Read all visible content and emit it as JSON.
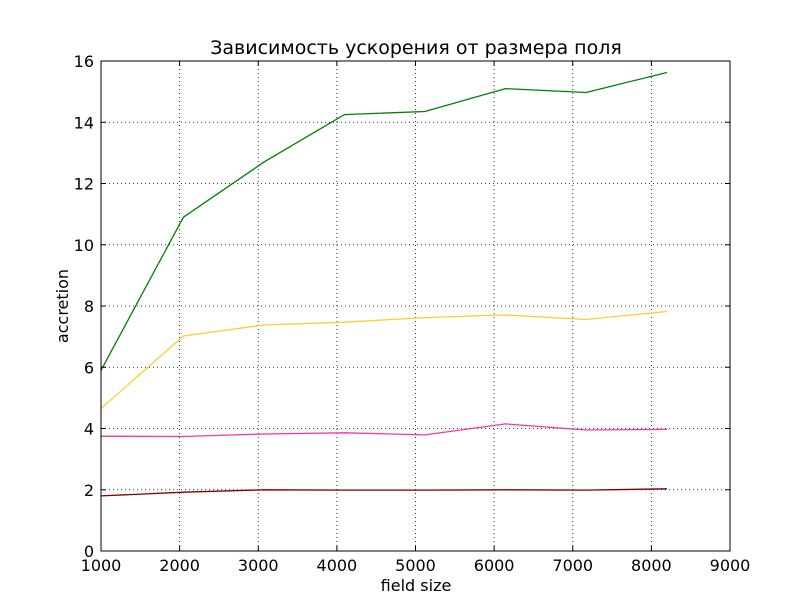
{
  "chart_data": {
    "type": "line",
    "title": "Зависимость ускорения от размера поля",
    "xlabel": "field size",
    "ylabel": "accretion",
    "xlim": [
      1000,
      9000
    ],
    "ylim": [
      0,
      16
    ],
    "xticks": [
      "1000",
      "2000",
      "3000",
      "4000",
      "5000",
      "6000",
      "7000",
      "8000",
      "9000"
    ],
    "yticks": [
      "0",
      "2",
      "4",
      "6",
      "8",
      "10",
      "12",
      "14",
      "16"
    ],
    "grid": true,
    "x": [
      1000,
      2048,
      3072,
      4096,
      5120,
      6144,
      7168,
      8192
    ],
    "series": [
      {
        "color": "#008000",
        "values": [
          5.9,
          10.9,
          12.7,
          14.25,
          14.35,
          15.1,
          14.97,
          15.62
        ]
      },
      {
        "color": "#ffcc33",
        "values": [
          4.65,
          7.02,
          7.38,
          7.47,
          7.62,
          7.71,
          7.56,
          7.82
        ]
      },
      {
        "color": "#ff3399",
        "values": [
          3.75,
          3.74,
          3.82,
          3.86,
          3.79,
          4.15,
          3.95,
          3.97
        ]
      },
      {
        "color": "#800000",
        "values": [
          1.8,
          1.92,
          2.0,
          1.99,
          1.99,
          2.0,
          1.99,
          2.03
        ]
      }
    ]
  }
}
